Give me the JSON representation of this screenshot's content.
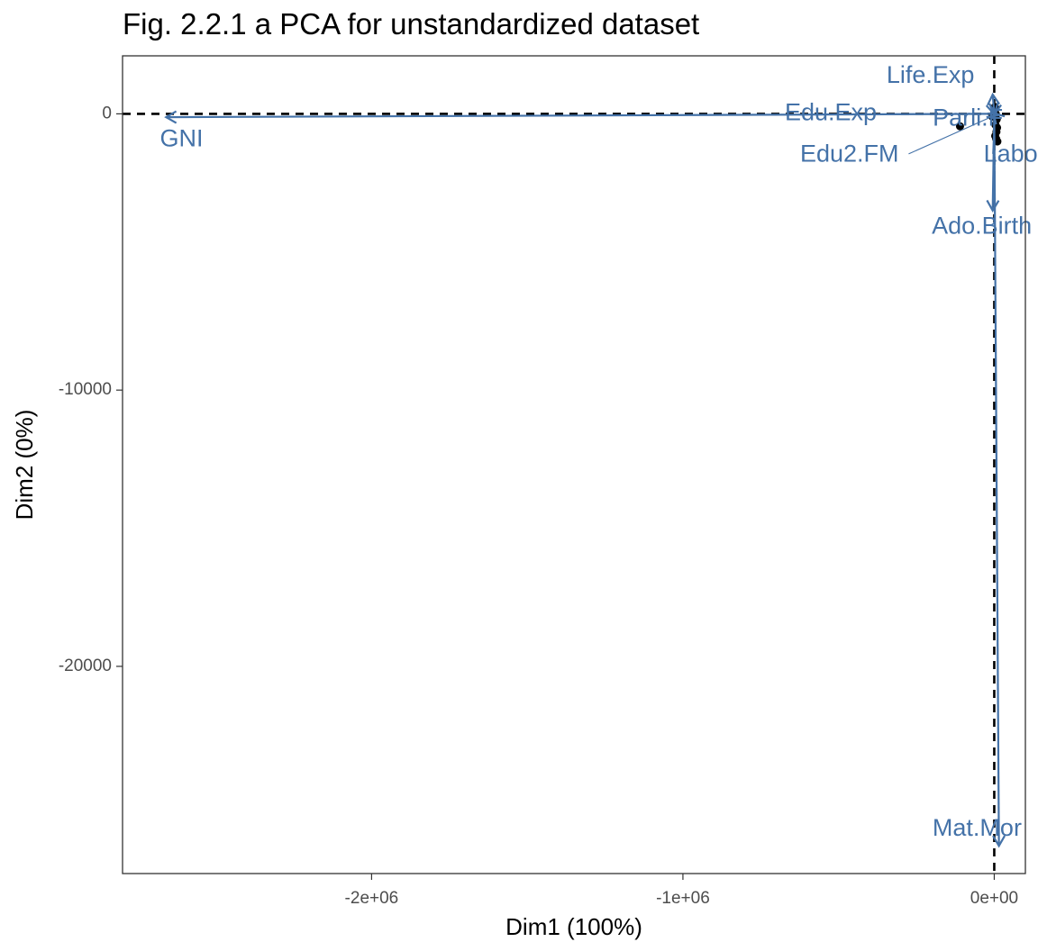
{
  "chart_data": {
    "type": "scatter",
    "title": "Fig. 2.2.1 a PCA for unstandardized dataset",
    "xlabel": "Dim1 (100%)",
    "ylabel": "Dim2 (0%)",
    "xlim": [
      -2800000,
      100000
    ],
    "ylim": [
      -27500,
      2100
    ],
    "x_ticks": [
      {
        "value": -2000000,
        "label": "-2e+06"
      },
      {
        "value": -1000000,
        "label": "-1e+06"
      },
      {
        "value": 0,
        "label": "0e+00"
      }
    ],
    "y_ticks": [
      {
        "value": 0,
        "label": "0"
      },
      {
        "value": -10000,
        "label": "-10000"
      },
      {
        "value": -20000,
        "label": "-20000"
      }
    ],
    "grid": false,
    "reference_lines": {
      "x": 0,
      "y": 0,
      "style": "dashed"
    },
    "arrow_color": "#4472A8",
    "point_color": "#000000",
    "points": [
      {
        "x": -110000,
        "y": -450
      },
      {
        "x": 2000,
        "y": 250
      },
      {
        "x": 5000,
        "y": 0
      },
      {
        "x": 8000,
        "y": -200
      },
      {
        "x": 4000,
        "y": -400
      },
      {
        "x": 7000,
        "y": -650
      },
      {
        "x": 3000,
        "y": -800
      },
      {
        "x": 6000,
        "y": -900
      },
      {
        "x": 10000,
        "y": -1000
      },
      {
        "x": -6000,
        "y": -100
      },
      {
        "x": 1000,
        "y": 100
      },
      {
        "x": 9000,
        "y": -500
      }
    ],
    "variables": [
      {
        "name": "GNI",
        "x": -2660000,
        "y": -120
      },
      {
        "name": "Life.Exp",
        "x": -5000,
        "y": 700
      },
      {
        "name": "Edu.Exp",
        "x": -2500,
        "y": 30
      },
      {
        "name": "Parli.F",
        "x": 12000,
        "y": -50
      },
      {
        "name": "Edu2.FM",
        "x": -200,
        "y": -20
      },
      {
        "name": "Labo.FM",
        "x": 200,
        "y": -10
      },
      {
        "name": "Ado.Birth",
        "x": -5000,
        "y": -3500
      },
      {
        "name": "Mat.Mor",
        "x": 15000,
        "y": -26500
      }
    ],
    "labels": [
      {
        "text": "GNI",
        "x": -2680000,
        "y": -950,
        "anchor": "start"
      },
      {
        "text": "Life.Exp",
        "x": -205000,
        "y": 1350,
        "anchor": "middle"
      },
      {
        "text": "Edu.Exp",
        "x": -525000,
        "y": 0,
        "anchor": "middle"
      },
      {
        "text": "Parli.F",
        "x": -85000,
        "y": -200,
        "anchor": "middle"
      },
      {
        "text": "Edu2.FM",
        "x": -465000,
        "y": -1500,
        "anchor": "middle"
      },
      {
        "text": "Labo.FM",
        "x": 120000,
        "y": -1500,
        "anchor": "middle"
      },
      {
        "text": "Ado.Birth",
        "x": -40000,
        "y": -4100,
        "anchor": "middle"
      },
      {
        "text": "Mat.Mor",
        "x": -55000,
        "y": -25900,
        "anchor": "middle"
      }
    ],
    "label_leaders": [
      {
        "from_x": -275000,
        "from_y": -1450,
        "to_x": -2000,
        "to_y": -70
      },
      {
        "from_x": -5000,
        "from_y": -1450,
        "to_x": 1000,
        "to_y": -50
      },
      {
        "from_x": -350000,
        "from_y": 0,
        "to_x": -2000,
        "to_y": 20
      }
    ]
  }
}
